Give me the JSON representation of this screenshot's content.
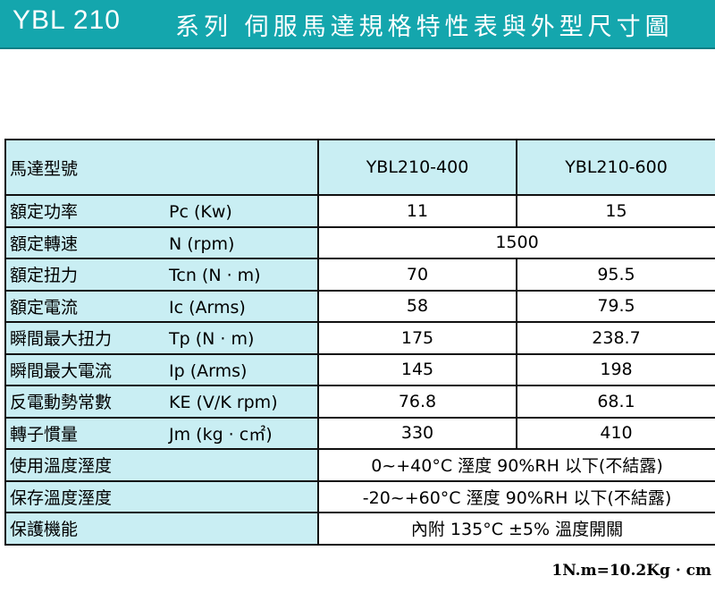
{
  "header": {
    "model": "YBL 210",
    "series_title": "系列 伺服馬達規格特性表與外型尺寸圖"
  },
  "table": {
    "head": {
      "label": "馬達型號",
      "models": [
        "YBL210-400",
        "YBL210-600"
      ]
    },
    "rows": [
      {
        "label": "額定功率",
        "symbol": "Pc (Kw)",
        "v1": "11",
        "v2": "15"
      },
      {
        "label": "額定轉速",
        "symbol": "N  (rpm)",
        "merged": "1500"
      },
      {
        "label": "額定扭力",
        "symbol": "Tcn (N · m)",
        "v1": "70",
        "v2": "95.5"
      },
      {
        "label": "額定電流",
        "symbol": "Ic  (Arms)",
        "v1": "58",
        "v2": "79.5"
      },
      {
        "label": "瞬間最大扭力",
        "symbol": "Tp (N · m)",
        "v1": "175",
        "v2": "238.7"
      },
      {
        "label": "瞬間最大電流",
        "symbol": "Ip  (Arms)",
        "v1": "145",
        "v2": "198"
      },
      {
        "label": "反電動勢常數",
        "symbol": "KE (V/K rpm)",
        "v1": "76.8",
        "v2": "68.1"
      },
      {
        "label": "轉子慣量",
        "symbol": "Jm (kg · c㎡)",
        "v1": "330",
        "v2": "410"
      },
      {
        "label": "使用溫度溼度",
        "merged": "0~+40°C   溼度 90%RH 以下(不結露)"
      },
      {
        "label": "保存溫度溼度",
        "merged": "-20~+60°C   溼度 90%RH 以下(不結露)"
      },
      {
        "label": "保護機能",
        "merged": "內附 135°C ±5% 溫度開關"
      }
    ]
  },
  "footnote": "1N.m=10.2Kg · cm"
}
